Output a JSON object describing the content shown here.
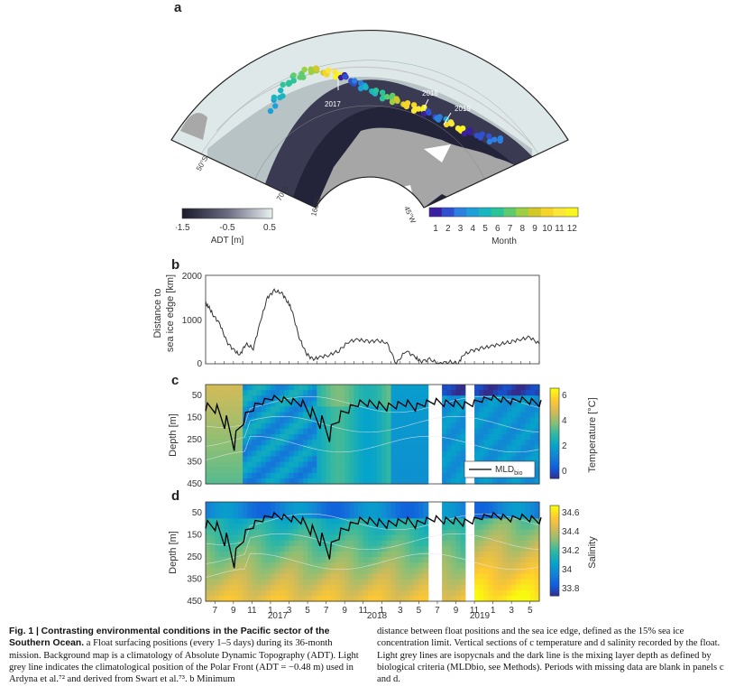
{
  "panels": {
    "a": {
      "letter": "a",
      "year_labels": [
        "2017",
        "2018",
        "2019"
      ],
      "lat_labels": [
        "50°S",
        "70°S"
      ],
      "lon_labels": [
        "160°E",
        "45°W"
      ],
      "adt_colorbar": {
        "ticks": [
          "-1.5",
          "-0.5",
          "0.5"
        ],
        "title": "ADT [m]"
      },
      "month_colorbar": {
        "ticks": [
          "1",
          "2",
          "3",
          "4",
          "5",
          "6",
          "7",
          "8",
          "9",
          "10",
          "11",
          "12"
        ],
        "title": "Month"
      }
    },
    "b": {
      "letter": "b",
      "ylabel": "Distance to sea ice edge [km]",
      "ylabel_line1": "Distance to",
      "ylabel_line2": "sea ice edge [km]",
      "yticks": [
        "0",
        "1000",
        "2000"
      ]
    },
    "c": {
      "letter": "c",
      "ylabel": "Depth [m]",
      "yticks": [
        "50",
        "150",
        "250",
        "350",
        "450"
      ],
      "colorbar_title": "Temperature [°C]",
      "colorbar_ticks": [
        "6",
        "4",
        "2",
        "0"
      ],
      "legend_label": "MLD",
      "legend_sub": "bio"
    },
    "d": {
      "letter": "d",
      "ylabel": "Depth [m]",
      "yticks": [
        "50",
        "150",
        "250",
        "350",
        "450"
      ],
      "colorbar_title": "Salinity",
      "colorbar_ticks": [
        "34.6",
        "34.4",
        "34.2",
        "34",
        "33.8"
      ],
      "xticks": [
        "7",
        "9",
        "11",
        "1",
        "3",
        "5",
        "7",
        "9",
        "11",
        "1",
        "3",
        "5",
        "7",
        "9",
        "11",
        "1",
        "3",
        "5"
      ],
      "years": [
        "2017",
        "2018",
        "2019"
      ]
    }
  },
  "chart_data": [
    {
      "type": "line",
      "panel": "b",
      "ylabel": "Distance to sea ice edge [km]",
      "ylim": [
        0,
        2000
      ],
      "x_unit": "month index from Jun 2017 (0) to May 2020 (35)",
      "x": [
        0,
        0.3,
        0.8,
        1.5,
        2.2,
        3,
        3.6,
        4.2,
        5,
        5.8,
        6.5,
        7.2,
        8,
        8.6,
        9,
        9.8,
        10.5,
        11.2,
        12,
        13,
        14,
        15,
        16,
        17,
        18,
        19,
        20,
        21,
        22,
        22.5,
        23.5,
        24.5,
        25.5,
        26.5,
        27,
        28,
        29,
        30,
        31,
        32,
        33,
        34,
        35
      ],
      "y": [
        1350,
        1300,
        1100,
        900,
        500,
        300,
        200,
        450,
        350,
        1000,
        1500,
        1650,
        1600,
        1400,
        1250,
        600,
        250,
        100,
        150,
        200,
        300,
        500,
        550,
        500,
        520,
        480,
        0,
        300,
        150,
        50,
        100,
        0,
        50,
        0,
        200,
        300,
        350,
        400,
        450,
        500,
        550,
        600,
        450
      ],
      "grid": false
    },
    {
      "type": "heatmap",
      "panel": "c",
      "title": "",
      "ylabel": "Depth [m]",
      "ylim": [
        450,
        0
      ],
      "colorbar": {
        "title": "Temperature [°C]",
        "range": [
          -1,
          7
        ]
      },
      "series": [
        {
          "name": "MLD",
          "values": [
            120,
            130,
            200,
            300,
            180,
            120,
            90,
            70,
            80,
            90,
            100,
            150,
            200,
            260,
            170,
            130,
            100,
            100,
            110,
            120,
            110,
            100,
            120,
            100,
            90,
            100,
            100,
            110,
            100,
            80,
            70,
            80,
            90,
            80,
            90,
            100
          ]
        }
      ],
      "missing_periods": [
        [
          "2018-05",
          "2018-06"
        ],
        [
          "2018-09",
          "2018-10"
        ]
      ]
    },
    {
      "type": "heatmap",
      "panel": "d",
      "ylabel": "Depth [m]",
      "ylim": [
        450,
        0
      ],
      "colorbar": {
        "title": "Salinity",
        "range": [
          33.7,
          34.7
        ]
      },
      "x_tick_labels": [
        "7",
        "9",
        "11",
        "1",
        "3",
        "5",
        "7",
        "9",
        "11",
        "1",
        "3",
        "5",
        "7",
        "9",
        "11",
        "1",
        "3",
        "5"
      ],
      "years": [
        "2017",
        "2018",
        "2019"
      ]
    }
  ],
  "caption": {
    "fig_label": "Fig. 1 |",
    "title": "Contrasting environmental conditions in the Pacific sector of the Southern Ocean.",
    "left_text": "a Float surfacing positions (every 1–5 days) during its 36-month mission. Background map is a climatology of Absolute Dynamic Topography (ADT). Light grey line indicates the climatological position of the Polar Front (ADT = −0.48 m) used in Ardyna et al.⁷² and derived from Swart et al.⁷³. b Minimum",
    "right_text": "distance between float positions and the sea ice edge, defined as the 15% sea ice concentration limit. Vertical sections of c temperature and d salinity recorded by the float. Light grey lines are isopycnals and the dark line is the mixing layer depth as defined by biological criteria (MLDbio, see Methods). Periods with missing data are blank in panels c and d."
  },
  "colors": {
    "adt_low": "#1b1b2e",
    "adt_high": "#e8f0f0",
    "month_cmap": [
      "#3a1fa0",
      "#3050d0",
      "#2c80e0",
      "#1f9fd8",
      "#19b6c0",
      "#2bc49a",
      "#5fcb6e",
      "#9ccf42",
      "#d2c82a",
      "#f6d52a",
      "#fbe63a",
      "#f9f51e"
    ],
    "land": "#a6a6a6",
    "polar_front": "#c8c8c8"
  }
}
